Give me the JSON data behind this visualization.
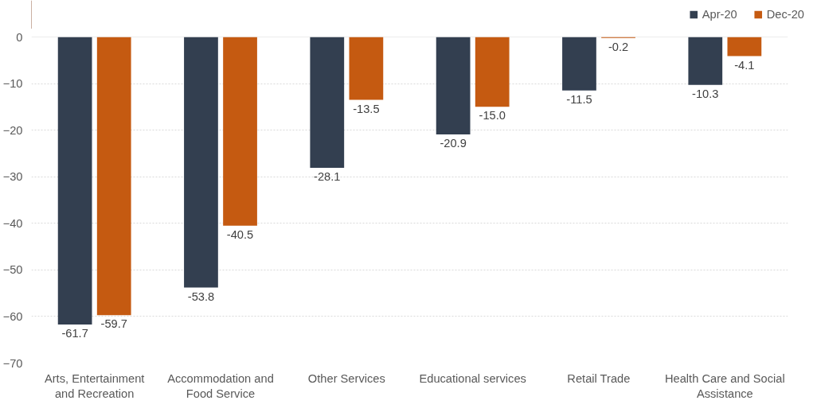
{
  "chart_data": {
    "type": "bar",
    "categories": [
      "Arts, Entertainment\nand Recreation",
      "Accommodation and\nFood Service",
      "Other Services",
      "Educational services",
      "Retail Trade",
      "Health Care and Social\nAssistance"
    ],
    "series": [
      {
        "name": "Apr-20",
        "color": "#333f50",
        "values": [
          -61.7,
          -53.8,
          -28.1,
          -20.9,
          -11.5,
          -10.3
        ]
      },
      {
        "name": "Dec-20",
        "color": "#c55a11",
        "values": [
          -59.7,
          -40.5,
          -13.5,
          -15.0,
          -0.2,
          -4.1
        ]
      }
    ],
    "value_labels": [
      [
        "-61.7",
        "-53.8",
        "-28.1",
        "-20.9",
        "-11.5",
        "-10.3"
      ],
      [
        "-59.7",
        "-40.5",
        "-13.5",
        "-15.0",
        "-0.2",
        "-4.1"
      ]
    ],
    "ylim": [
      -70,
      0
    ],
    "yticks": [
      -70,
      -60,
      -50,
      -40,
      -30,
      -20,
      -10,
      0
    ],
    "grid": "y",
    "legend": "top right"
  }
}
